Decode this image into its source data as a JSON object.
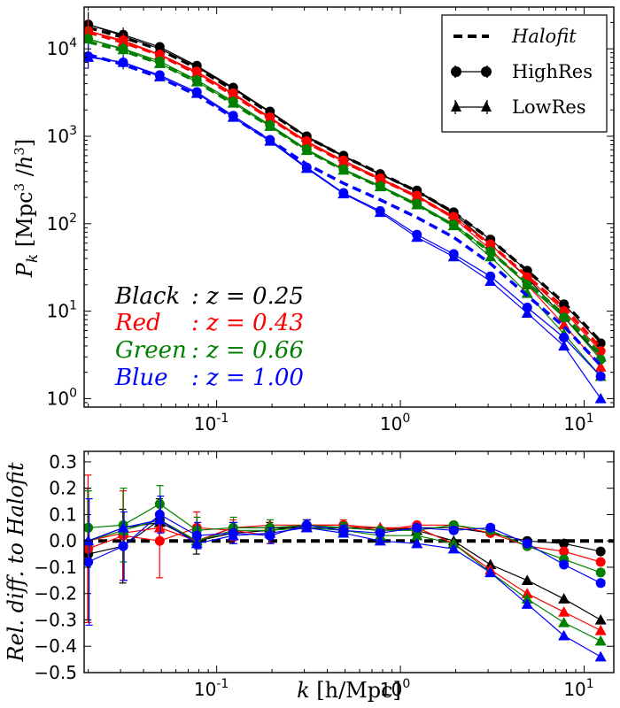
{
  "chart_data": [
    {
      "type": "line",
      "scale": {
        "x": "log",
        "y": "log"
      },
      "xlim": [
        0.019,
        14.5
      ],
      "ylim": [
        0.8,
        30000
      ],
      "ylabel": "P_k [Mpc^3 /h^3]",
      "x_tick_labels": [
        "10-1",
        "100",
        "101"
      ],
      "y_tick_labels": [
        "100",
        "101",
        "102",
        "103",
        "104"
      ],
      "k": [
        0.02,
        0.031,
        0.049,
        0.078,
        0.123,
        0.195,
        0.309,
        0.49,
        0.776,
        1.23,
        1.95,
        3.09,
        4.9,
        7.76,
        12.3
      ],
      "legend": {
        "location": "upper right",
        "entries": [
          "Halofit",
          "HighRes",
          "LowRes"
        ]
      },
      "annotations": [
        {
          "name": "Black",
          "text": "z = 0.25",
          "color": "#000000"
        },
        {
          "name": "Red",
          "text": "z = 0.43",
          "color": "#ff0000"
        },
        {
          "name": "Green",
          "text": "z = 0.66",
          "color": "#008000"
        },
        {
          "name": "Blue",
          "text": "z = 1.00",
          "color": "#0000ff"
        }
      ],
      "series": [
        {
          "z": 0.25,
          "color": "#000000",
          "halofit": [
            17500,
            13500,
            9800,
            6000,
            3400,
            1850,
            980,
            590,
            375,
            235,
            135,
            66,
            29,
            12.5,
            4.5
          ],
          "highres": [
            19000,
            14500,
            10500,
            6400,
            3600,
            1920,
            1000,
            600,
            370,
            240,
            135,
            66,
            29,
            12,
            4.3
          ],
          "lowres": [
            19000,
            14000,
            10000,
            6200,
            3500,
            1880,
            980,
            585,
            365,
            235,
            130,
            58,
            24,
            8.5,
            3.0
          ]
        },
        {
          "z": 0.43,
          "color": "#ff0000",
          "halofit": [
            15500,
            11800,
            8500,
            5200,
            2950,
            1600,
            850,
            510,
            325,
            205,
            118,
            58,
            25,
            11,
            3.8
          ],
          "highres": [
            16000,
            12500,
            8600,
            5500,
            3100,
            1650,
            880,
            530,
            330,
            210,
            120,
            58,
            24.5,
            10,
            3.5
          ],
          "lowres": [
            16000,
            12000,
            8500,
            5300,
            3000,
            1600,
            850,
            510,
            320,
            205,
            115,
            51,
            20,
            7.0,
            2.3
          ]
        },
        {
          "z": 0.66,
          "color": "#008000",
          "halofit": [
            12000,
            9500,
            6800,
            4200,
            2350,
            1300,
            690,
            410,
            265,
            165,
            96,
            48,
            21,
            9.2,
            3.2
          ],
          "highres": [
            13000,
            10000,
            7200,
            4400,
            2500,
            1350,
            710,
            420,
            270,
            170,
            98,
            48,
            20,
            8.5,
            2.8
          ],
          "lowres": [
            13000,
            9800,
            6800,
            4200,
            2400,
            1300,
            690,
            410,
            265,
            165,
            95,
            42,
            16,
            5.5,
            1.8
          ]
        },
        {
          "z": 1.0,
          "color": "#0000ff",
          "halofit": [
            8600,
            6600,
            4700,
            2950,
            1640,
            900,
            480,
            290,
            188,
            118,
            70,
            35,
            15,
            6.7,
            2.4
          ],
          "highres": [
            8200,
            7000,
            5000,
            3200,
            1720,
            910,
            440,
            225,
            140,
            75,
            45,
            25,
            11,
            5.0,
            1.8
          ],
          "lowres": [
            8000,
            7000,
            4800,
            3100,
            1650,
            880,
            430,
            220,
            135,
            70,
            42,
            22,
            9.5,
            4.0,
            1.0
          ]
        }
      ]
    },
    {
      "type": "line",
      "scale": {
        "x": "log",
        "y": "linear"
      },
      "xlim": [
        0.019,
        14.5
      ],
      "ylim": [
        -0.5,
        0.34
      ],
      "xlabel": "k [h/Mpc]",
      "ylabel": "Rel. diff. to Halofit",
      "x_tick_labels": [
        "10-1",
        "100",
        "101"
      ],
      "y_tick_labels": [
        "0.3",
        "0.2",
        "0.1",
        "0.0",
        "−0.1",
        "−0.2",
        "−0.3",
        "−0.4",
        "−0.5"
      ],
      "k": [
        0.02,
        0.031,
        0.049,
        0.078,
        0.123,
        0.195,
        0.309,
        0.49,
        0.776,
        1.23,
        1.95,
        3.09,
        4.9,
        7.76,
        12.3
      ],
      "reference_line": 0.0,
      "series": [
        {
          "z": 0.25,
          "color": "#000000",
          "highres": [
            -0.05,
            -0.02,
            0.08,
            0.0,
            0.03,
            0.04,
            0.06,
            0.05,
            0.04,
            0.05,
            0.05,
            0.03,
            0.0,
            -0.01,
            -0.04
          ],
          "lowres": [
            0.0,
            0.05,
            0.07,
            0.0,
            0.05,
            0.05,
            0.05,
            0.05,
            0.05,
            0.04,
            0.0,
            -0.09,
            -0.15,
            -0.22,
            -0.3
          ],
          "errors": [
            0.25,
            0.14,
            0.08,
            0.05,
            0.04,
            0.03,
            0.02,
            0.02,
            0.01,
            0.01,
            0.01,
            0.01,
            0.01,
            0.01,
            0.01
          ]
        },
        {
          "z": 0.43,
          "color": "#ff0000",
          "highres": [
            -0.03,
            0.02,
            0.0,
            0.05,
            0.04,
            0.02,
            0.06,
            0.06,
            0.04,
            0.06,
            0.06,
            0.03,
            -0.02,
            -0.04,
            -0.08
          ],
          "lowres": [
            0.0,
            0.03,
            0.05,
            0.0,
            0.05,
            0.06,
            0.06,
            0.06,
            0.05,
            0.05,
            -0.01,
            -0.11,
            -0.2,
            -0.27,
            -0.34
          ],
          "errors": [
            0.28,
            0.17,
            0.14,
            0.06,
            0.04,
            0.03,
            0.02,
            0.02,
            0.01,
            0.01,
            0.01,
            0.01,
            0.01,
            0.01,
            0.01
          ]
        },
        {
          "z": 0.66,
          "color": "#008000",
          "highres": [
            0.05,
            0.06,
            0.14,
            0.04,
            0.05,
            0.05,
            0.06,
            0.05,
            0.04,
            0.04,
            0.06,
            0.04,
            -0.02,
            -0.07,
            -0.12
          ],
          "lowres": [
            0.0,
            0.04,
            0.08,
            0.0,
            0.04,
            0.04,
            0.05,
            0.04,
            0.02,
            0.02,
            -0.01,
            -0.12,
            -0.22,
            -0.31,
            -0.38
          ],
          "errors": [
            0.14,
            0.14,
            0.07,
            0.05,
            0.04,
            0.03,
            0.02,
            0.02,
            0.01,
            0.01,
            0.01,
            0.01,
            0.01,
            0.01,
            0.01
          ]
        },
        {
          "z": 1.0,
          "color": "#0000ff",
          "highres": [
            -0.08,
            -0.02,
            0.1,
            0.02,
            0.03,
            0.02,
            0.06,
            0.04,
            0.03,
            0.05,
            0.04,
            0.05,
            -0.01,
            -0.09,
            -0.16
          ],
          "lowres": [
            0.0,
            0.05,
            0.08,
            -0.01,
            0.02,
            0.03,
            0.05,
            0.03,
            0.0,
            -0.01,
            -0.03,
            -0.12,
            -0.24,
            -0.36,
            -0.44
          ],
          "errors": [
            0.24,
            0.13,
            0.07,
            0.05,
            0.04,
            0.03,
            0.02,
            0.02,
            0.01,
            0.01,
            0.01,
            0.01,
            0.01,
            0.01,
            0.01
          ]
        }
      ]
    }
  ]
}
